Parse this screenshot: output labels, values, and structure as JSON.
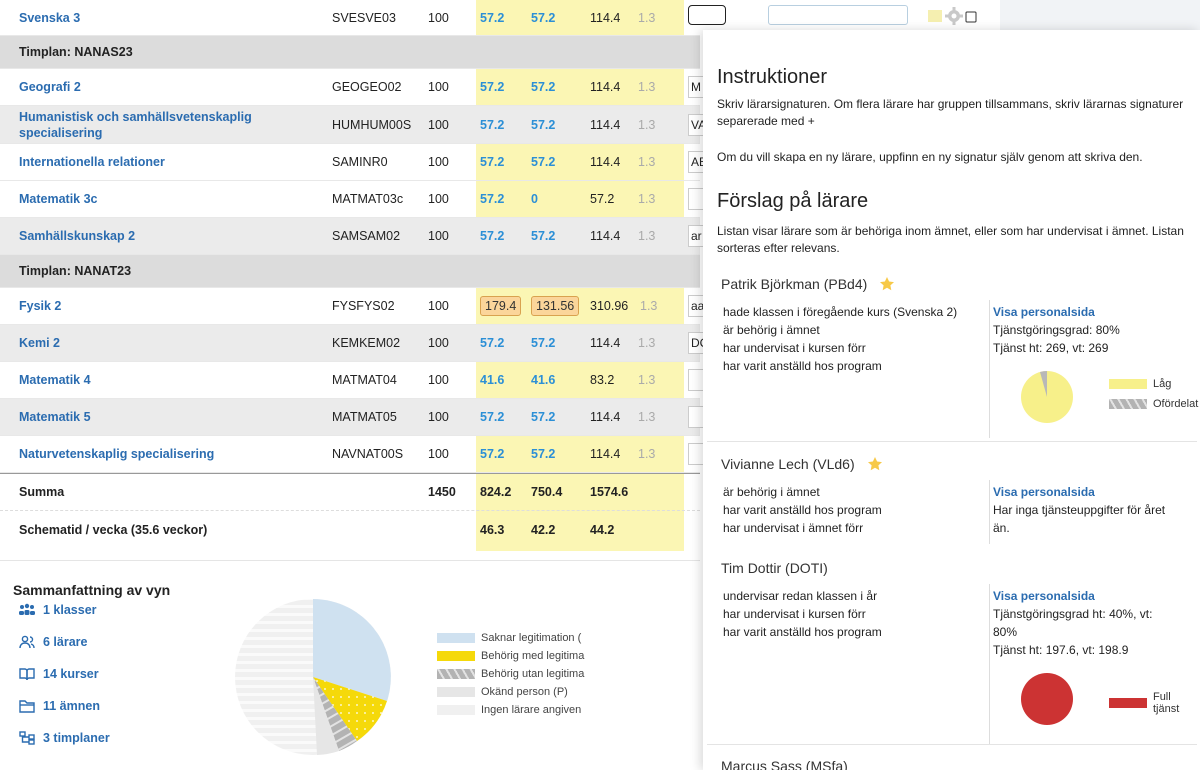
{
  "top_row": {
    "name": "Svenska 3",
    "code": "SVESVE03",
    "points": "100",
    "v1": "57.2",
    "v2": "57.2",
    "v3": "114.4",
    "v4": "1.3"
  },
  "groups": [
    {
      "header": "Timplan: NANAS23",
      "rows": [
        {
          "name": "Geografi 2",
          "code": "GEOGEO02",
          "points": "100",
          "v1": "57.2",
          "v2": "57.2",
          "v3": "114.4",
          "v4": "1.3",
          "input": "M"
        },
        {
          "name": "Humanistisk och samhällsvetenskaplig specialisering",
          "code": "HUMHUM00S",
          "points": "100",
          "v1": "57.2",
          "v2": "57.2",
          "v3": "114.4",
          "v4": "1.3",
          "input": "VA"
        },
        {
          "name": "Internationella relationer",
          "code": "SAMINR0",
          "points": "100",
          "v1": "57.2",
          "v2": "57.2",
          "v3": "114.4",
          "v4": "1.3",
          "input": "AE"
        },
        {
          "name": "Matematik 3c",
          "code": "MATMAT03c",
          "points": "100",
          "v1": "57.2",
          "v2": "0",
          "v3": "57.2",
          "v4": "1.3",
          "input": ""
        },
        {
          "name": "Samhällskunskap 2",
          "code": "SAMSAM02",
          "points": "100",
          "v1": "57.2",
          "v2": "57.2",
          "v3": "114.4",
          "v4": "1.3",
          "input": "ar"
        }
      ]
    },
    {
      "header": "Timplan: NANAT23",
      "rows": [
        {
          "name": "Fysik 2",
          "code": "FYSFYS02",
          "points": "100",
          "v1": "179.4",
          "v2": "131.56",
          "v3": "310.96",
          "v4": "1.3",
          "input": "aa"
        },
        {
          "name": "Kemi 2",
          "code": "KEMKEM02",
          "points": "100",
          "v1": "57.2",
          "v2": "57.2",
          "v3": "114.4",
          "v4": "1.3",
          "input": "DC"
        },
        {
          "name": "Matematik 4",
          "code": "MATMAT04",
          "points": "100",
          "v1": "41.6",
          "v2": "41.6",
          "v3": "83.2",
          "v4": "1.3",
          "input": ""
        },
        {
          "name": "Matematik 5",
          "code": "MATMAT05",
          "points": "100",
          "v1": "57.2",
          "v2": "57.2",
          "v3": "114.4",
          "v4": "1.3",
          "input": ""
        },
        {
          "name": "Naturvetenskaplig specialisering",
          "code": "NAVNAT00S",
          "points": "100",
          "v1": "57.2",
          "v2": "57.2",
          "v3": "114.4",
          "v4": "1.3",
          "input": ""
        }
      ]
    }
  ],
  "totals": {
    "label": "Summa",
    "points": "1450",
    "v1": "824.2",
    "v2": "750.4",
    "v3": "1574.6"
  },
  "per_week": {
    "label": "Schematid / vecka (35.6 veckor)",
    "v1": "46.3",
    "v2": "42.2",
    "v3": "44.2"
  },
  "summary": {
    "title": "Sammanfattning av vyn",
    "links": [
      {
        "icon": "classes-icon",
        "label": "1 klasser"
      },
      {
        "icon": "teachers-icon",
        "label": "6 lärare"
      },
      {
        "icon": "courses-icon",
        "label": "14 kurser"
      },
      {
        "icon": "subjects-icon",
        "label": "11 ämnen"
      },
      {
        "icon": "timeplans-icon",
        "label": "3 timplaner"
      }
    ],
    "legend": [
      {
        "label": "Saknar legitimation (",
        "color": "#cfe1f0"
      },
      {
        "label": "Behörig med legitima",
        "color": "#f5d90a"
      },
      {
        "label": "Behörig utan legitima",
        "color": "#b8b8b8"
      },
      {
        "label": "Okänd person (P)",
        "color": "#e6e6e6"
      },
      {
        "label": "Ingen lärare angiven",
        "color": "#eeeeee"
      }
    ]
  },
  "panel": {
    "title": "Instruktioner",
    "instr1": "Skriv lärarsignaturen. Om flera lärare har gruppen tillsammans, skriv lärarnas signaturer separerade med +",
    "instr2": "Om du vill skapa en ny lärare, uppfinn en ny signatur själv genom att skriva den.",
    "suggest_title": "Förslag på lärare",
    "suggest_text": "Listan visar lärare som är behöriga inom ämnet, eller som har undervisat i ämnet. Listan sorteras efter relevans.",
    "teachers": [
      {
        "name": "Patrik Björkman (PBd4)",
        "star": true,
        "reasons": [
          "hade klassen i föregående kurs (Svenska 2)",
          "är behörig i ämnet",
          "har undervisat i kursen förr",
          "har varit anställd hos program"
        ],
        "link": "Visa personalsida",
        "info": [
          "Tjänstgöringsgrad: 80%",
          "Tjänst ht: 269, vt: 269"
        ],
        "legend": [
          {
            "label": "Låg",
            "color": "#f7f08a"
          },
          {
            "label": "Ofördelat",
            "color": "#b8b8b8"
          }
        ]
      },
      {
        "name": "Vivianne Lech (VLd6)",
        "star": true,
        "reasons": [
          "är behörig i ämnet",
          "har varit anställd hos program",
          "har undervisat i ämnet förr"
        ],
        "link": "Visa personalsida",
        "info": [
          "Har inga tjänsteuppgifter för året",
          "än."
        ]
      },
      {
        "name": "Tim Dottir (DOTI)",
        "star": false,
        "reasons": [
          "undervisar redan klassen i år",
          "har undervisat i kursen förr",
          "har varit anställd hos program"
        ],
        "link": "Visa personalsida",
        "info": [
          "Tjänstgöringsgrad ht: 40%, vt:",
          "80%",
          "Tjänst ht: 197.6, vt: 198.9"
        ],
        "legend": [
          {
            "label": "Full tjänst",
            "color": "#cc3333"
          }
        ]
      },
      {
        "name": "Marcus Sass (MSfa)",
        "star": false
      }
    ]
  }
}
